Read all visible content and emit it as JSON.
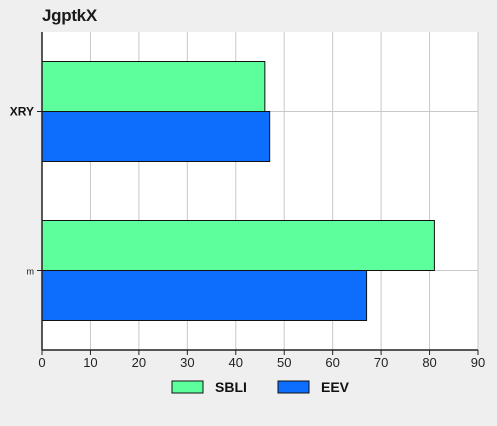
{
  "chart_data": {
    "type": "bar",
    "orientation": "horizontal",
    "title": "JgptkX",
    "categories": [
      "XRY",
      "m"
    ],
    "series": [
      {
        "name": "SBLI",
        "color": "#5cff9b",
        "values": [
          46,
          81
        ]
      },
      {
        "name": "EEV",
        "color": "#0d6efd",
        "values": [
          47,
          67
        ]
      }
    ],
    "xlim": [
      0,
      90
    ],
    "xticks": [
      0,
      10,
      20,
      30,
      40,
      50,
      60,
      70,
      80,
      90
    ],
    "grid": true,
    "legend_position": "bottom"
  }
}
